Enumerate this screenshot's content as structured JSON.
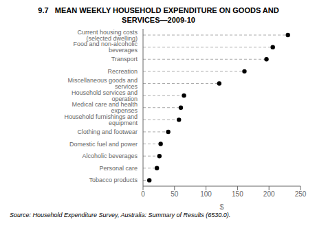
{
  "chart_data": {
    "type": "dot",
    "orientation": "horizontal",
    "title": "9.7   MEAN WEEKLY HOUSEHOLD EXPENDITURE ON GOODS AND\nSERVICES—2009-10",
    "categories": [
      "Current housing costs (selected dwelling)",
      "Food and non-alcoholic beverages",
      "Transport",
      "Recreation",
      "Miscellaneous goods and services",
      "Household services and operation",
      "Medical care and health expenses",
      "Household furnishings and equipment",
      "Clothing and footwear",
      "Domestic fuel and power",
      "Alcoholic beverages",
      "Personal care",
      "Tobacco products"
    ],
    "values": [
      230,
      206,
      196,
      161,
      121,
      65,
      60,
      57,
      40,
      28,
      26,
      22,
      10
    ],
    "xlabel": "$",
    "xlim": [
      0,
      250
    ],
    "xticks": [
      0,
      50,
      100,
      150,
      200,
      250
    ],
    "color": "#000000",
    "marker": "circle",
    "line_style": "dashed",
    "grid": false,
    "source": "Source: Household Expenditure Survey, Australia: Summary of Results (6530.0)."
  }
}
